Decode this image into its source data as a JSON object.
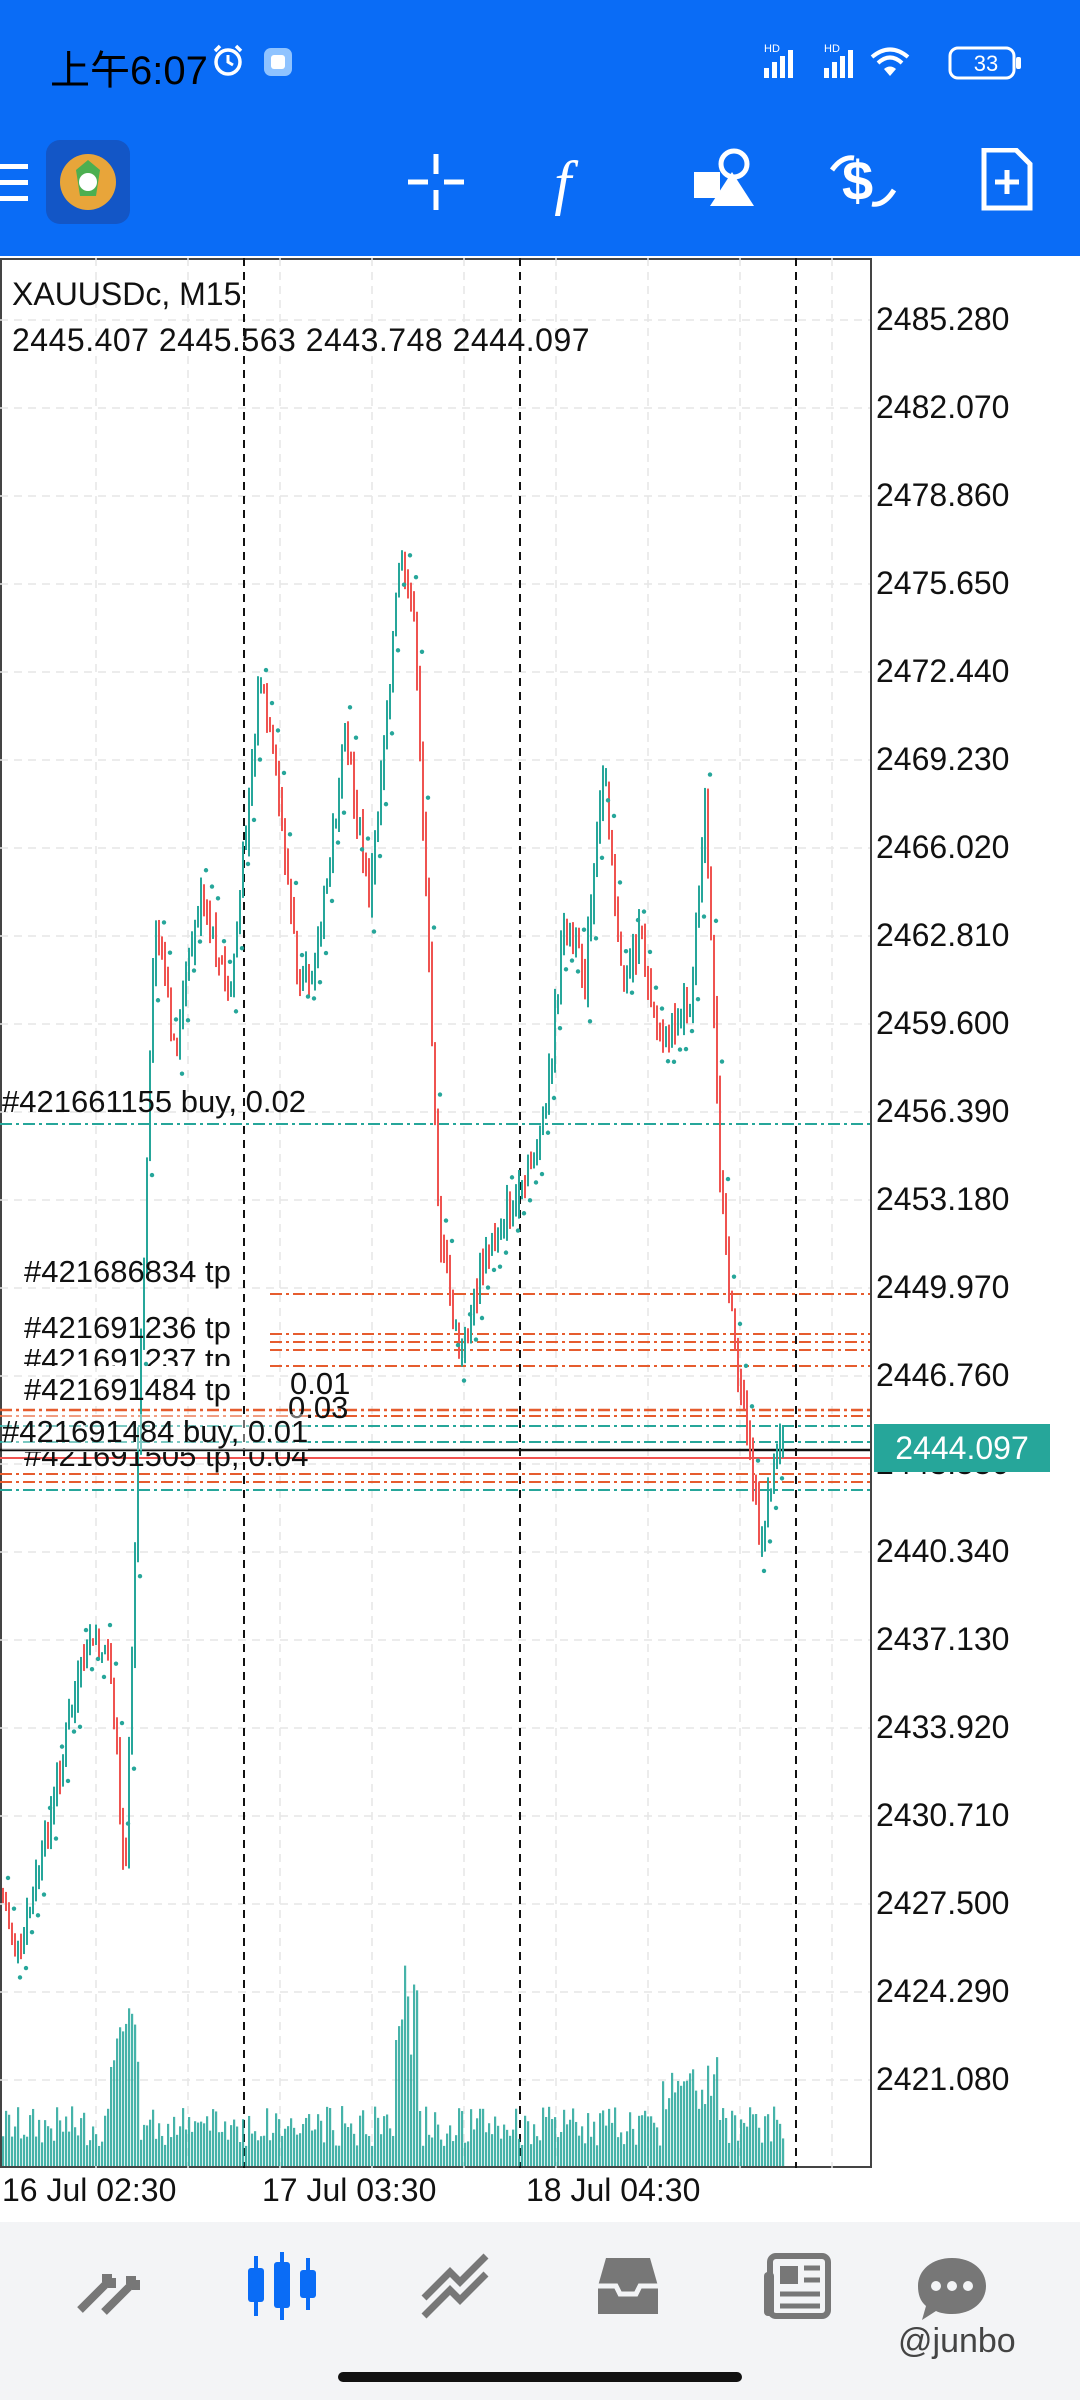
{
  "status_bar": {
    "time": "上午6:07",
    "battery": "33",
    "icons": [
      "alarm-icon",
      "app-notif-icon",
      "hd-signal-icon",
      "hd-signal-icon",
      "wifi-icon",
      "battery-icon"
    ]
  },
  "toolbar": {
    "icons": [
      "menu-icon",
      "app-logo-icon",
      "crosshair-icon",
      "indicators-f-icon",
      "objects-icon",
      "trade-dollar-icon",
      "new-order-icon"
    ]
  },
  "chart": {
    "symbol": "XAUUSDc, M15",
    "ohlc": "2445.407 2445.563 2443.748 2444.097",
    "current_price": "2444.097",
    "price_ticks": [
      "2485.280",
      "2482.070",
      "2478.860",
      "2475.650",
      "2472.440",
      "2469.230",
      "2466.020",
      "2462.810",
      "2459.600",
      "2456.390",
      "2453.180",
      "2449.970",
      "2446.760",
      "2443.550",
      "2440.340",
      "2437.130",
      "2433.920",
      "2430.710",
      "2427.500",
      "2424.290",
      "2421.080"
    ],
    "date_ticks": [
      "16 Jul 02:30",
      "17 Jul 03:30",
      "18 Jul 04:30"
    ],
    "trade_labels": [
      "#421661155 buy, 0.02",
      "#421686834 tp",
      "#421691236 tp",
      "#421691237 tp",
      "#421691484 tp",
      "0.01",
      "0.03",
      "#421691484 buy, 0.01",
      "#421691505 tp, 0.04"
    ]
  },
  "colors": {
    "header_blue": "#0a6cf6",
    "bull": "#26a69a",
    "bear": "#ef5350",
    "tp_line": "#e65c2e"
  },
  "bottom_nav": {
    "items": [
      "quotes-icon",
      "chart-icon",
      "trade-icon",
      "history-icon",
      "news-icon",
      "messages-icon"
    ],
    "active": "chart-icon"
  },
  "watermark": "@junbo"
}
